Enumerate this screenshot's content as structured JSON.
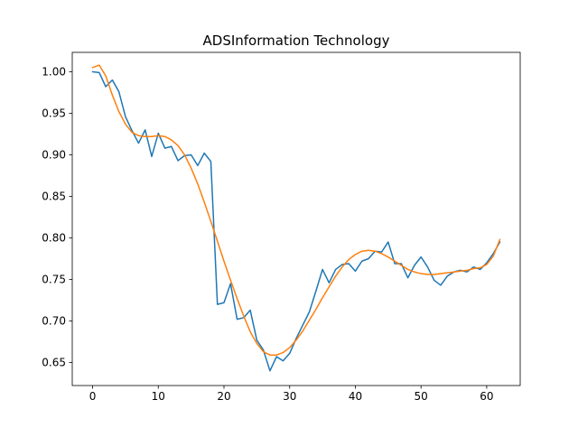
{
  "chart_data": {
    "type": "line",
    "title": "ADSInformation Technology",
    "xlabel": "",
    "ylabel": "",
    "xlim": [
      -3.1,
      65.1
    ],
    "ylim": [
      0.6223,
      1.0233
    ],
    "x_ticks": [
      0,
      10,
      20,
      30,
      40,
      50,
      60
    ],
    "x_tick_labels": [
      "0",
      "10",
      "20",
      "30",
      "40",
      "50",
      "60"
    ],
    "y_ticks": [
      0.65,
      0.7,
      0.75,
      0.8,
      0.85,
      0.9,
      0.95,
      1.0
    ],
    "y_tick_labels": [
      "0.65",
      "0.70",
      "0.75",
      "0.80",
      "0.85",
      "0.90",
      "0.95",
      "1.00"
    ],
    "grid": false,
    "legend": "none",
    "series": [
      {
        "color": "#1f77b4",
        "x": [
          0,
          1,
          2,
          3,
          4,
          5,
          6,
          7,
          8,
          9,
          10,
          11,
          12,
          13,
          14,
          15,
          16,
          17,
          18,
          19,
          20,
          21,
          22,
          23,
          24,
          25,
          26,
          27,
          28,
          29,
          30,
          31,
          32,
          33,
          34,
          35,
          36,
          37,
          38,
          39,
          40,
          41,
          42,
          43,
          44,
          45,
          46,
          47,
          48,
          49,
          50,
          51,
          52,
          53,
          54,
          55,
          56,
          57,
          58,
          59,
          60,
          61,
          62
        ],
        "values": [
          1.0,
          0.999,
          0.982,
          0.99,
          0.976,
          0.946,
          0.929,
          0.914,
          0.93,
          0.898,
          0.926,
          0.908,
          0.91,
          0.893,
          0.899,
          0.9,
          0.887,
          0.902,
          0.892,
          0.72,
          0.722,
          0.745,
          0.702,
          0.704,
          0.713,
          0.677,
          0.665,
          0.64,
          0.657,
          0.652,
          0.661,
          0.679,
          0.695,
          0.711,
          0.736,
          0.762,
          0.746,
          0.762,
          0.768,
          0.769,
          0.76,
          0.772,
          0.775,
          0.784,
          0.783,
          0.795,
          0.769,
          0.769,
          0.752,
          0.767,
          0.777,
          0.765,
          0.749,
          0.743,
          0.754,
          0.759,
          0.761,
          0.759,
          0.765,
          0.762,
          0.77,
          0.781,
          0.795
        ]
      },
      {
        "color": "#ff7f0e",
        "x": [
          0,
          1,
          2,
          3,
          4,
          5,
          6,
          7,
          8,
          9,
          10,
          11,
          12,
          13,
          14,
          15,
          16,
          17,
          18,
          19,
          20,
          21,
          22,
          23,
          24,
          25,
          26,
          27,
          28,
          29,
          30,
          31,
          32,
          33,
          34,
          35,
          36,
          37,
          38,
          39,
          40,
          41,
          42,
          43,
          44,
          45,
          46,
          47,
          48,
          49,
          50,
          51,
          52,
          53,
          54,
          55,
          56,
          57,
          58,
          59,
          60,
          61,
          62
        ],
        "values": [
          1.005,
          1.008,
          0.995,
          0.972,
          0.952,
          0.937,
          0.927,
          0.923,
          0.922,
          0.922,
          0.923,
          0.922,
          0.918,
          0.911,
          0.9,
          0.884,
          0.865,
          0.843,
          0.82,
          0.796,
          0.772,
          0.749,
          0.727,
          0.706,
          0.687,
          0.673,
          0.663,
          0.659,
          0.659,
          0.662,
          0.668,
          0.677,
          0.688,
          0.701,
          0.714,
          0.728,
          0.741,
          0.754,
          0.765,
          0.774,
          0.78,
          0.784,
          0.785,
          0.784,
          0.781,
          0.777,
          0.772,
          0.767,
          0.762,
          0.759,
          0.757,
          0.756,
          0.756,
          0.757,
          0.758,
          0.759,
          0.76,
          0.761,
          0.763,
          0.764,
          0.768,
          0.778,
          0.798
        ]
      }
    ]
  }
}
